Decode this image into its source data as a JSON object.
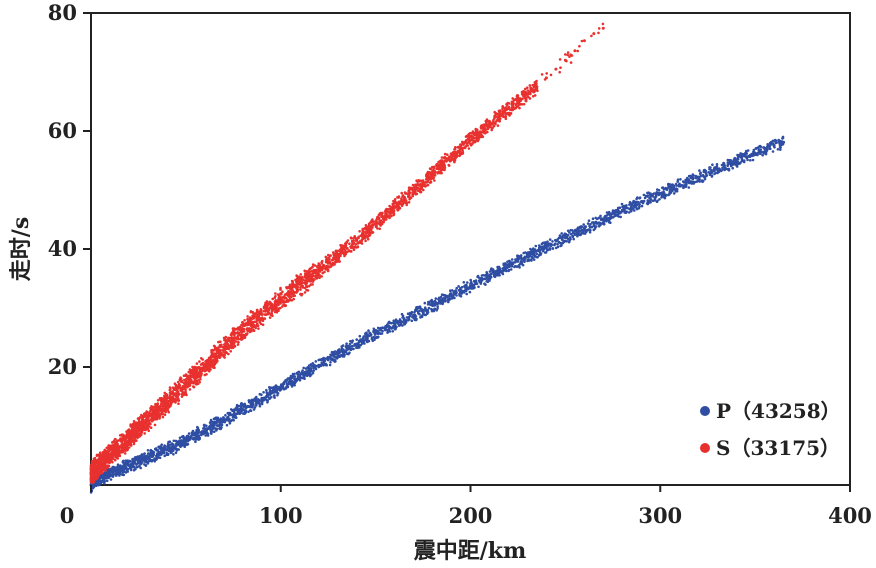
{
  "chart_data": {
    "type": "scatter",
    "xlabel": "震中距/km",
    "ylabel": "走时/s",
    "xlim": [
      0,
      400
    ],
    "ylim": [
      0,
      80
    ],
    "x_ticks": [
      "0",
      "100",
      "200",
      "300",
      "400"
    ],
    "y_ticks": [
      "20",
      "40",
      "60",
      "80"
    ],
    "grid": false,
    "legend_position": "bottom-right",
    "series": [
      {
        "name": "P（43258）",
        "color": "#2f4ea3",
        "point_count": 43258,
        "points": [
          [
            0,
            0
          ],
          [
            2,
            0.8
          ],
          [
            5,
            1.2
          ],
          [
            8,
            1.6
          ],
          [
            10,
            2
          ],
          [
            12,
            2.3
          ],
          [
            15,
            2.6
          ],
          [
            18,
            3
          ],
          [
            20,
            3.3
          ],
          [
            22,
            3.6
          ],
          [
            25,
            4
          ],
          [
            28,
            4.3
          ],
          [
            30,
            4.6
          ],
          [
            32,
            4.9
          ],
          [
            35,
            5.3
          ],
          [
            38,
            5.7
          ],
          [
            40,
            6
          ],
          [
            42,
            6.3
          ],
          [
            45,
            6.7
          ],
          [
            48,
            7.2
          ],
          [
            50,
            7.5
          ],
          [
            52,
            7.9
          ],
          [
            55,
            8.4
          ],
          [
            58,
            8.9
          ],
          [
            60,
            9.2
          ],
          [
            62,
            9.6
          ],
          [
            65,
            10.1
          ],
          [
            68,
            10.6
          ],
          [
            70,
            11
          ],
          [
            72,
            11.4
          ],
          [
            75,
            11.9
          ],
          [
            78,
            12.4
          ],
          [
            80,
            12.8
          ],
          [
            82,
            13.2
          ],
          [
            85,
            13.8
          ],
          [
            88,
            14.3
          ],
          [
            90,
            14.7
          ],
          [
            95,
            15.6
          ],
          [
            100,
            16.4
          ],
          [
            105,
            17.5
          ],
          [
            110,
            18.5
          ],
          [
            115,
            19.4
          ],
          [
            120,
            20.3
          ],
          [
            125,
            21.2
          ],
          [
            130,
            22.1
          ],
          [
            135,
            23
          ],
          [
            140,
            23.9
          ],
          [
            145,
            24.8
          ],
          [
            150,
            25.7
          ],
          [
            155,
            26.6
          ],
          [
            160,
            27.3
          ],
          [
            165,
            28
          ],
          [
            170,
            28.8
          ],
          [
            175,
            29.6
          ],
          [
            180,
            30.4
          ],
          [
            185,
            31.3
          ],
          [
            190,
            32.1
          ],
          [
            195,
            33
          ],
          [
            200,
            33.8
          ],
          [
            205,
            34.6
          ],
          [
            210,
            35.4
          ],
          [
            215,
            36.2
          ],
          [
            220,
            37.1
          ],
          [
            225,
            37.9
          ],
          [
            230,
            38.7
          ],
          [
            240,
            40.3
          ],
          [
            250,
            41.9
          ],
          [
            260,
            43.4
          ],
          [
            270,
            45
          ],
          [
            280,
            46.5
          ],
          [
            290,
            48
          ],
          [
            300,
            49.4
          ],
          [
            310,
            50.8
          ],
          [
            320,
            52.2
          ],
          [
            330,
            53.5
          ],
          [
            340,
            54.9
          ],
          [
            350,
            56.2
          ],
          [
            360,
            57.5
          ],
          [
            365,
            58.1
          ]
        ]
      },
      {
        "name": "S（33175）",
        "color": "#e8312f",
        "point_count": 33175,
        "points": [
          [
            0,
            2
          ],
          [
            2,
            2.7
          ],
          [
            5,
            3.6
          ],
          [
            8,
            4.4
          ],
          [
            10,
            5
          ],
          [
            12,
            5.7
          ],
          [
            15,
            6.5
          ],
          [
            18,
            7.4
          ],
          [
            20,
            8
          ],
          [
            22,
            8.7
          ],
          [
            25,
            9.5
          ],
          [
            28,
            10.4
          ],
          [
            30,
            11
          ],
          [
            32,
            11.6
          ],
          [
            35,
            12.5
          ],
          [
            38,
            13.4
          ],
          [
            40,
            14
          ],
          [
            42,
            14.7
          ],
          [
            45,
            15.5
          ],
          [
            48,
            16.4
          ],
          [
            50,
            17
          ],
          [
            52,
            17.7
          ],
          [
            55,
            18.6
          ],
          [
            58,
            19.5
          ],
          [
            60,
            20.1
          ],
          [
            62,
            20.7
          ],
          [
            65,
            21.7
          ],
          [
            68,
            22.7
          ],
          [
            70,
            23.3
          ],
          [
            72,
            23.9
          ],
          [
            75,
            24.8
          ],
          [
            78,
            25.7
          ],
          [
            80,
            26.3
          ],
          [
            85,
            27.6
          ],
          [
            90,
            28.9
          ],
          [
            95,
            30.3
          ],
          [
            100,
            31.5
          ],
          [
            105,
            32.7
          ],
          [
            110,
            34
          ],
          [
            115,
            35.2
          ],
          [
            120,
            36.4
          ],
          [
            125,
            37.6
          ],
          [
            130,
            38.9
          ],
          [
            135,
            40.1
          ],
          [
            140,
            41.4
          ],
          [
            145,
            42.8
          ],
          [
            150,
            44.2
          ],
          [
            155,
            45.6
          ],
          [
            160,
            47
          ],
          [
            165,
            48.4
          ],
          [
            170,
            49.9
          ],
          [
            175,
            51.3
          ],
          [
            180,
            52.8
          ],
          [
            185,
            54.2
          ],
          [
            190,
            55.6
          ],
          [
            195,
            57
          ],
          [
            200,
            58.4
          ],
          [
            205,
            59.8
          ],
          [
            210,
            61.2
          ],
          [
            215,
            62.5
          ],
          [
            220,
            63.8
          ],
          [
            225,
            65
          ],
          [
            230,
            66.2
          ],
          [
            235,
            67.5
          ],
          [
            240,
            69
          ],
          [
            245,
            70.5
          ],
          [
            250,
            72
          ],
          [
            255,
            73.6
          ],
          [
            260,
            75.3
          ],
          [
            265,
            76.5
          ],
          [
            270,
            77.4
          ]
        ]
      }
    ]
  }
}
